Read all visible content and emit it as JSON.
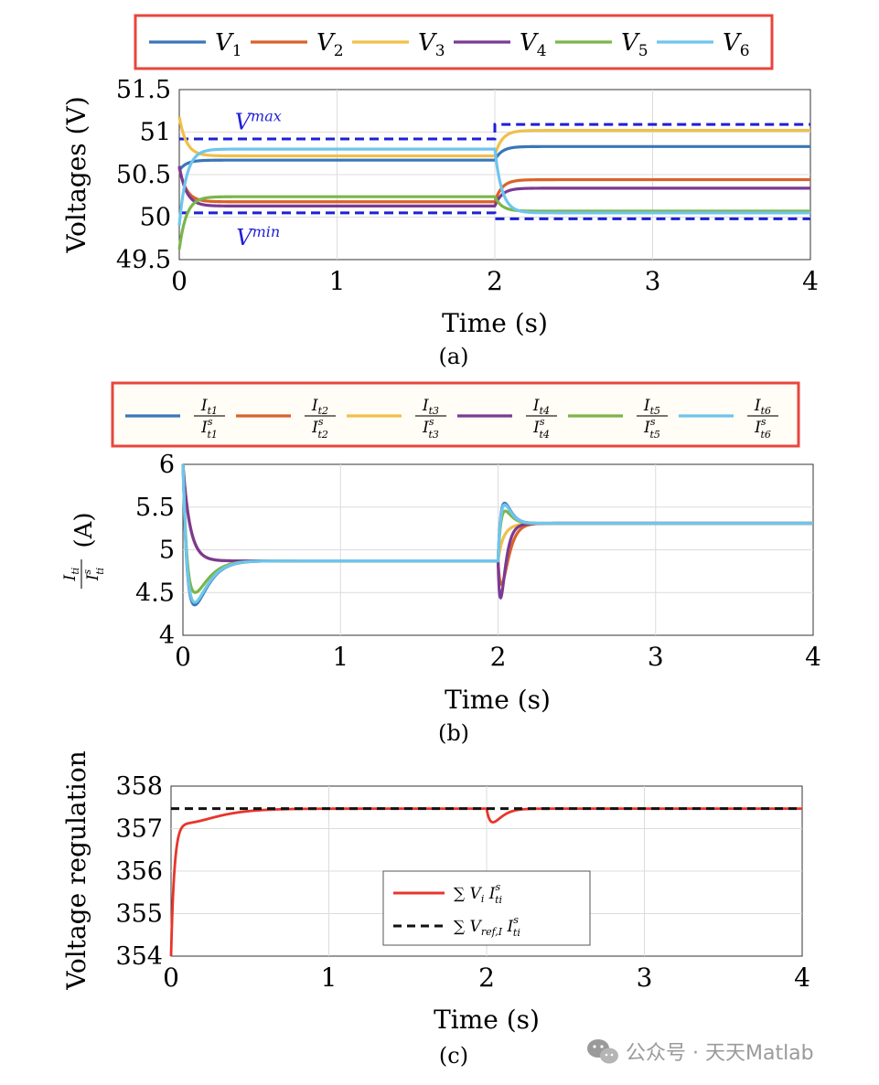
{
  "colors": {
    "c1": "#3a76b8",
    "c2": "#d9622a",
    "c3": "#f0c04a",
    "c4": "#7b3a93",
    "c5": "#7ab648",
    "c6": "#6ec5ee",
    "bound": "#1f1fd6",
    "legendBorder": "#e8463c",
    "red": "#e8352b",
    "black": "#111111",
    "grid": "#dcdcdc"
  },
  "watermark": {
    "icon": "wechat-icon",
    "text": "公众号 · 天天Matlab"
  },
  "chart_data": [
    {
      "type": "line",
      "id": "a",
      "caption": "(a)",
      "xlabel": "Time (s)",
      "ylabel": "Voltages (V)",
      "xlim": [
        0,
        4
      ],
      "ylim": [
        49.5,
        51.5
      ],
      "xticks": [
        "0",
        "1",
        "2",
        "3",
        "4"
      ],
      "yticks": [
        "49.5",
        "50",
        "50.5",
        "51",
        "51.5"
      ],
      "ytick_values": [
        49.5,
        50,
        50.5,
        51,
        51.5
      ],
      "annotations": [
        {
          "base": "V",
          "sup": "max",
          "x": 0.5,
          "y": 51.12
        },
        {
          "base": "V",
          "sup": "min",
          "x": 0.5,
          "y": 49.76
        }
      ],
      "legend": [
        {
          "base": "V",
          "sub": "1"
        },
        {
          "base": "V",
          "sub": "2"
        },
        {
          "base": "V",
          "sub": "3"
        },
        {
          "base": "V",
          "sub": "4"
        },
        {
          "base": "V",
          "sub": "5"
        },
        {
          "base": "V",
          "sub": "6"
        }
      ],
      "series": [
        {
          "name": "V1",
          "color": "c1",
          "start": 50.55,
          "ss1": 50.67,
          "ss2": 50.83,
          "os1": [],
          "os2": []
        },
        {
          "name": "V2",
          "color": "c2",
          "start": 50.58,
          "ss1": 50.18,
          "ss2": 50.44,
          "os1": [],
          "os2": []
        },
        {
          "name": "V3",
          "color": "c3",
          "start": 51.18,
          "ss1": 50.72,
          "ss2": 51.02,
          "os1": [],
          "os2": []
        },
        {
          "name": "V4",
          "color": "c4",
          "start": 50.6,
          "ss1": 50.13,
          "ss2": 50.34,
          "os1": [],
          "os2": []
        },
        {
          "name": "V5",
          "color": "c5",
          "start": 49.62,
          "ss1": 50.24,
          "ss2": 50.07,
          "os1": [],
          "os2": []
        },
        {
          "name": "V6",
          "color": "c6",
          "start": 49.9,
          "ss1": 50.8,
          "ss2": 50.05,
          "os1": [],
          "os2": []
        }
      ],
      "bounds": [
        {
          "name": "Vmax",
          "segments": [
            [
              0,
              2,
              50.92
            ],
            [
              2,
              4,
              51.09
            ]
          ]
        },
        {
          "name": "Vmin",
          "segments": [
            [
              0,
              2,
              50.05
            ],
            [
              2,
              4,
              49.98
            ]
          ]
        }
      ]
    },
    {
      "type": "line",
      "id": "b",
      "caption": "(b)",
      "xlabel": "Time (s)",
      "ylabel": "(A)",
      "xlim": [
        0,
        4
      ],
      "ylim": [
        4,
        6
      ],
      "xticks": [
        "0",
        "1",
        "2",
        "3",
        "4"
      ],
      "yticks": [
        "4",
        "4.5",
        "5",
        "5.5",
        "6"
      ],
      "ytick_values": [
        4,
        4.5,
        5,
        5.5,
        6
      ],
      "legend": [
        {
          "num": "I",
          "numsub": "t1",
          "den": "I",
          "densup": "s",
          "densub": "t1"
        },
        {
          "num": "I",
          "numsub": "t2",
          "den": "I",
          "densup": "s",
          "densub": "t2"
        },
        {
          "num": "I",
          "numsub": "t3",
          "den": "I",
          "densup": "s",
          "densub": "t3"
        },
        {
          "num": "I",
          "numsub": "t4",
          "den": "I",
          "densup": "s",
          "densub": "t4"
        },
        {
          "num": "I",
          "numsub": "t5",
          "den": "I",
          "densup": "s",
          "densub": "t5"
        },
        {
          "num": "I",
          "numsub": "t6",
          "den": "I",
          "densup": "s",
          "densub": "t6"
        }
      ],
      "ylabel_frac": {
        "num": "I",
        "numsub": "ti",
        "den": "I",
        "densup": "s",
        "densub": "ti"
      },
      "series": [
        {
          "name": "It1",
          "color": "c1",
          "start": 6.0,
          "ss1": 4.87,
          "ss2": 5.31,
          "os1": [
            0.06,
            4.3
          ],
          "os2": [
            2.03,
            5.52
          ]
        },
        {
          "name": "It2",
          "color": "c2",
          "start": 6.0,
          "ss1": 4.87,
          "ss2": 5.31,
          "os1": [],
          "os2": [
            2.03,
            4.62
          ]
        },
        {
          "name": "It3",
          "color": "c3",
          "start": 6.0,
          "ss1": 4.87,
          "ss2": 5.31,
          "os1": [],
          "os2": [
            2.03,
            5.12
          ]
        },
        {
          "name": "It4",
          "color": "c4",
          "start": 6.0,
          "ss1": 4.87,
          "ss2": 5.31,
          "os1": [],
          "os2": [
            2.02,
            4.45
          ]
        },
        {
          "name": "It5",
          "color": "c5",
          "start": 6.0,
          "ss1": 4.87,
          "ss2": 5.31,
          "os1": [
            0.06,
            4.45
          ],
          "os2": [
            2.03,
            5.42
          ]
        },
        {
          "name": "It6",
          "color": "c6",
          "start": 6.0,
          "ss1": 4.87,
          "ss2": 5.31,
          "os1": [
            0.06,
            4.33
          ],
          "os2": [
            2.03,
            5.5
          ]
        }
      ]
    },
    {
      "type": "line",
      "id": "c",
      "caption": "(c)",
      "xlabel": "Time (s)",
      "ylabel": "Voltage regulation",
      "xlim": [
        0,
        4
      ],
      "ylim": [
        354,
        358
      ],
      "xticks": [
        "0",
        "1",
        "2",
        "3",
        "4"
      ],
      "yticks": [
        "354",
        "355",
        "356",
        "357",
        "358"
      ],
      "ytick_values": [
        354,
        355,
        356,
        357,
        358
      ],
      "legend": [
        {
          "label": "V",
          "sub": "i",
          "sup2": "s",
          "sub2": "ti",
          "style": "solid",
          "color": "red"
        },
        {
          "label": "V",
          "sub": "ref,I",
          "sup2": "s",
          "sub2": "ti",
          "style": "dashed",
          "color": "black"
        }
      ],
      "series": [
        {
          "name": "sum Vi Iti",
          "color": "red",
          "start": 354.0,
          "ss1": 357.47,
          "ss2": 357.47,
          "os1": [
            0.12,
            357.15
          ],
          "os2": [
            2.04,
            357.15
          ]
        },
        {
          "name": "sum Vref Iti",
          "color": "black",
          "start": 357.47,
          "ss1": 357.47,
          "ss2": 357.47,
          "os1": [],
          "os2": []
        }
      ]
    }
  ]
}
